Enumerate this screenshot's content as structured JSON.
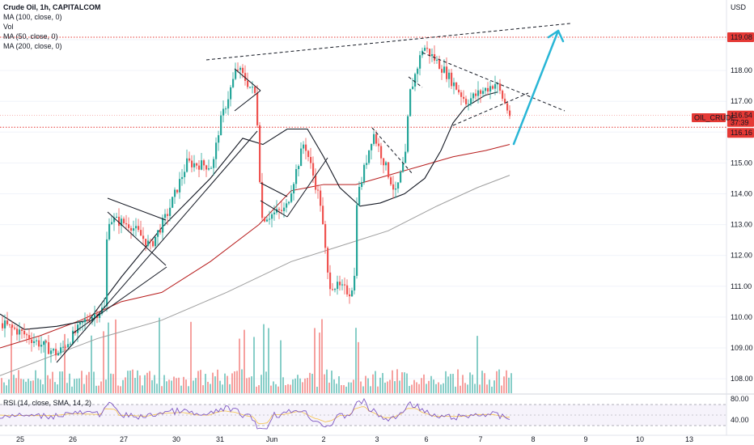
{
  "legend": {
    "title": "Crude Oil, 1h, CAPITALCOM",
    "ma100": "MA (100, close, 0)",
    "vol": "Vol",
    "ma50": "MA (50, close, 0)",
    "ma200": "MA (200, close, 0)"
  },
  "rsi_label": "RSI (14, close, SMA, 14, 2)",
  "price_axis": {
    "currency": "USD",
    "ticks": [
      "119.00",
      "118.00",
      "117.00",
      "116.00",
      "115.00",
      "114.00",
      "113.00",
      "112.00",
      "111.00",
      "110.00",
      "109.00",
      "108.00"
    ],
    "resistance_label": "119.08",
    "symbol_label": "OIL_CRUDE",
    "current_price": "116.54",
    "countdown": "37:39",
    "support_label": "116.16"
  },
  "rsi_axis": {
    "ticks": [
      "80.00",
      "40.00"
    ]
  },
  "time_axis": {
    "ticks": [
      "25",
      "26",
      "27",
      "30",
      "31",
      "Jun",
      "2",
      "3",
      "6",
      "7",
      "8",
      "9",
      "10",
      "13"
    ]
  },
  "colors": {
    "up": "#26a69a",
    "down": "#ef5350",
    "ma100": "#b71c1c",
    "ma50": "#131722",
    "ma200": "#9e9e9e",
    "level": "#e53935",
    "arrow": "#29b6d6",
    "rsi": "#7e57c2",
    "rsi_ma": "#f5c24a"
  },
  "chart_data": {
    "type": "candlestick",
    "symbol": "Crude Oil",
    "interval": "1h",
    "source": "CAPITALCOM",
    "ylim": [
      107.6,
      120.0
    ],
    "resistance": 119.08,
    "support": 116.16,
    "last": 116.54,
    "x_tick_labels": [
      "25",
      "26",
      "27",
      "30",
      "31",
      "Jun",
      "2",
      "3",
      "6",
      "7",
      "8",
      "9",
      "10",
      "13"
    ],
    "anchors": [
      {
        "x": 0,
        "p": 109.8
      },
      {
        "x": 25,
        "p": 109.5
      },
      {
        "x": 70,
        "p": 108.8
      },
      {
        "x": 105,
        "p": 109.9
      },
      {
        "x": 128,
        "p": 110.3
      },
      {
        "x": 132,
        "p": 113.2
      },
      {
        "x": 160,
        "p": 113.0
      },
      {
        "x": 185,
        "p": 112.3
      },
      {
        "x": 205,
        "p": 113.3
      },
      {
        "x": 230,
        "p": 115.0
      },
      {
        "x": 262,
        "p": 114.9
      },
      {
        "x": 270,
        "p": 116.2
      },
      {
        "x": 292,
        "p": 118.1
      },
      {
        "x": 315,
        "p": 117.2
      },
      {
        "x": 318,
        "p": 115.9
      },
      {
        "x": 322,
        "p": 113.2
      },
      {
        "x": 352,
        "p": 113.5
      },
      {
        "x": 375,
        "p": 115.7
      },
      {
        "x": 395,
        "p": 113.7
      },
      {
        "x": 405,
        "p": 111.1
      },
      {
        "x": 432,
        "p": 110.8
      },
      {
        "x": 437,
        "p": 111.3
      },
      {
        "x": 440,
        "p": 113.8
      },
      {
        "x": 460,
        "p": 116.0
      },
      {
        "x": 488,
        "p": 114.0
      },
      {
        "x": 500,
        "p": 115.2
      },
      {
        "x": 505,
        "p": 117.2
      },
      {
        "x": 522,
        "p": 118.8
      },
      {
        "x": 548,
        "p": 118.0
      },
      {
        "x": 575,
        "p": 117.0
      },
      {
        "x": 612,
        "p": 117.6
      },
      {
        "x": 630,
        "p": 116.5
      }
    ],
    "ma50": [
      [
        0,
        110.1
      ],
      [
        30,
        109.6
      ],
      [
        70,
        109.7
      ],
      [
        110,
        109.9
      ],
      [
        150,
        111.3
      ],
      [
        200,
        112.9
      ],
      [
        260,
        114.5
      ],
      [
        300,
        115.8
      ],
      [
        325,
        115.6
      ],
      [
        355,
        116.1
      ],
      [
        380,
        116.1
      ],
      [
        400,
        115.2
      ],
      [
        420,
        114.2
      ],
      [
        445,
        113.6
      ],
      [
        470,
        113.7
      ],
      [
        500,
        114.0
      ],
      [
        525,
        114.5
      ],
      [
        545,
        115.4
      ],
      [
        560,
        116.3
      ],
      [
        575,
        116.8
      ],
      [
        600,
        117.2
      ],
      [
        615,
        117.3
      ]
    ],
    "ma100": [
      [
        0,
        109.0
      ],
      [
        50,
        109.4
      ],
      [
        100,
        109.9
      ],
      [
        150,
        110.5
      ],
      [
        200,
        110.8
      ],
      [
        260,
        111.8
      ],
      [
        320,
        113.0
      ],
      [
        360,
        114.1
      ],
      [
        400,
        114.3
      ],
      [
        440,
        114.3
      ],
      [
        480,
        114.6
      ],
      [
        520,
        114.9
      ],
      [
        560,
        115.2
      ],
      [
        600,
        115.4
      ],
      [
        630,
        115.6
      ]
    ],
    "ma200": [
      [
        0,
        108.1
      ],
      [
        60,
        108.7
      ],
      [
        120,
        109.3
      ],
      [
        200,
        109.9
      ],
      [
        280,
        110.8
      ],
      [
        360,
        111.8
      ],
      [
        420,
        112.3
      ],
      [
        480,
        112.8
      ],
      [
        540,
        113.6
      ],
      [
        590,
        114.2
      ],
      [
        630,
        114.6
      ]
    ],
    "annotations": {
      "upper_channel": [
        [
          255,
          74
        ],
        [
          705,
          29
        ]
      ],
      "wedge_1": [
        [
          133,
          245
        ],
        [
          205,
          272
        ],
        [
          133,
          262
        ],
        [
          205,
          328
        ]
      ],
      "wedge_2": [
        [
          290,
          85
        ],
        [
          322,
          112
        ],
        [
          290,
          137
        ],
        [
          322,
          112
        ]
      ],
      "wedge_3": [
        [
          322,
          226
        ],
        [
          355,
          243
        ],
        [
          322,
          248
        ],
        [
          355,
          268
        ]
      ],
      "trend_A": [
        [
          70,
          448
        ],
        [
          318,
          162
        ]
      ],
      "trend_B": [
        [
          90,
          412
        ],
        [
          206,
          330
        ]
      ],
      "trend_C": [
        [
          355,
          268
        ],
        [
          405,
          195
        ]
      ],
      "dash_1": [
        [
          460,
          158
        ],
        [
          510,
          215
        ]
      ],
      "dash_2": [
        [
          505,
          95
        ],
        [
          522,
          108
        ]
      ],
      "dash_3": [
        [
          522,
          65
        ],
        [
          698,
          137
        ]
      ],
      "dash_4": [
        [
          560,
          155
        ],
        [
          653,
          115
        ]
      ],
      "arrow": [
        [
          635,
          178
        ],
        [
          690,
          38
        ]
      ]
    }
  }
}
